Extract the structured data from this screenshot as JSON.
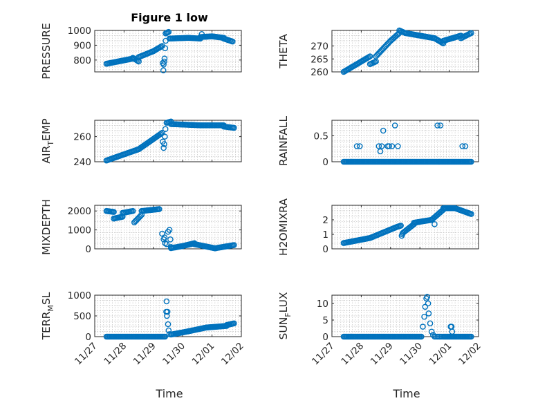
{
  "figure": {
    "title": "Figure 1 low",
    "xlabel": "Time"
  },
  "colors": {
    "series": "#0072BD",
    "axis": "#262626",
    "grid": "#c8c8c8"
  },
  "chart_data": [
    {
      "type": "scatter",
      "ylabel": "PRESSURE",
      "title": "Figure 1 low",
      "xlim": [
        0,
        5
      ],
      "ylim": [
        720,
        1000
      ],
      "yticks": [
        800,
        900,
        1000
      ],
      "xticks": [
        "11/27",
        "11/28",
        "11/29",
        "11/30",
        "12/01",
        "12/02"
      ],
      "grid": true,
      "segments": [
        {
          "x0": 0.4,
          "x1": 1.3,
          "y0": 775,
          "y1": 810
        },
        {
          "x0": 1.3,
          "x1": 1.5,
          "y0": 815,
          "y1": 790
        },
        {
          "x0": 1.5,
          "x1": 2.0,
          "y0": 820,
          "y1": 860
        },
        {
          "x0": 2.0,
          "x1": 2.3,
          "y0": 860,
          "y1": 895
        },
        {
          "x0": 2.42,
          "x1": 2.52,
          "y0": 980,
          "y1": 990
        },
        {
          "x0": 2.55,
          "x1": 3.2,
          "y0": 945,
          "y1": 950
        },
        {
          "x0": 3.2,
          "x1": 3.6,
          "y0": 950,
          "y1": 945
        },
        {
          "x0": 3.6,
          "x1": 4.0,
          "y0": 955,
          "y1": 960
        },
        {
          "x0": 4.0,
          "x1": 4.4,
          "y0": 960,
          "y1": 950
        },
        {
          "x0": 4.4,
          "x1": 4.7,
          "y0": 945,
          "y1": 925
        }
      ],
      "points": [
        [
          2.32,
          780
        ],
        [
          2.35,
          770
        ],
        [
          2.34,
          730
        ],
        [
          2.37,
          790
        ],
        [
          2.38,
          810
        ],
        [
          2.4,
          880
        ],
        [
          2.42,
          930
        ],
        [
          3.65,
          975
        ]
      ]
    },
    {
      "type": "scatter",
      "ylabel": "THETA",
      "xlim": [
        0,
        5
      ],
      "ylim": [
        260,
        276
      ],
      "yticks": [
        260,
        265,
        270
      ],
      "xticks": [
        "11/27",
        "11/28",
        "11/29",
        "11/30",
        "12/01",
        "12/02"
      ],
      "grid": true,
      "segments": [
        {
          "x0": 0.4,
          "x1": 1.3,
          "y0": 260,
          "y1": 266
        },
        {
          "x0": 1.3,
          "x1": 1.5,
          "y0": 263,
          "y1": 264
        },
        {
          "x0": 1.5,
          "x1": 2.0,
          "y0": 266,
          "y1": 272
        },
        {
          "x0": 2.0,
          "x1": 2.3,
          "y0": 272,
          "y1": 275
        },
        {
          "x0": 2.3,
          "x1": 2.5,
          "y0": 276,
          "y1": 275
        },
        {
          "x0": 2.5,
          "x1": 3.5,
          "y0": 275,
          "y1": 273
        },
        {
          "x0": 3.5,
          "x1": 3.8,
          "y0": 273,
          "y1": 271
        },
        {
          "x0": 3.8,
          "x1": 4.4,
          "y0": 272,
          "y1": 274
        },
        {
          "x0": 4.4,
          "x1": 4.75,
          "y0": 273,
          "y1": 275
        }
      ],
      "points": []
    },
    {
      "type": "scatter",
      "ylabel": "AIR_TEMP",
      "xlim": [
        0,
        5
      ],
      "ylim": [
        240,
        273
      ],
      "yticks": [
        240,
        260
      ],
      "xticks": [
        "11/27",
        "11/28",
        "11/29",
        "11/30",
        "12/01",
        "12/02"
      ],
      "grid": true,
      "segments": [
        {
          "x0": 0.4,
          "x1": 1.5,
          "y0": 241,
          "y1": 250
        },
        {
          "x0": 1.5,
          "x1": 2.3,
          "y0": 250,
          "y1": 263
        },
        {
          "x0": 2.45,
          "x1": 2.6,
          "y0": 271,
          "y1": 272
        },
        {
          "x0": 2.6,
          "x1": 3.6,
          "y0": 270,
          "y1": 269
        },
        {
          "x0": 3.6,
          "x1": 4.4,
          "y0": 269,
          "y1": 269
        },
        {
          "x0": 4.4,
          "x1": 4.75,
          "y0": 268,
          "y1": 267
        }
      ],
      "points": [
        [
          2.32,
          256
        ],
        [
          2.35,
          251
        ],
        [
          2.37,
          254
        ],
        [
          2.39,
          260
        ],
        [
          2.41,
          266
        ]
      ]
    },
    {
      "type": "scatter",
      "ylabel": "RAINFALL",
      "xlim": [
        0,
        5
      ],
      "ylim": [
        0,
        0.8
      ],
      "yticks": [
        0,
        0.5
      ],
      "xticks": [
        "11/27",
        "11/28",
        "11/29",
        "11/30",
        "12/01",
        "12/02"
      ],
      "grid": true,
      "segments": [
        {
          "x0": 0.4,
          "x1": 4.75,
          "y0": 0,
          "y1": 0
        }
      ],
      "points": [
        [
          0.85,
          0.3
        ],
        [
          0.95,
          0.3
        ],
        [
          1.6,
          0.3
        ],
        [
          1.65,
          0.2
        ],
        [
          1.7,
          0.3
        ],
        [
          1.75,
          0.6
        ],
        [
          1.9,
          0.3
        ],
        [
          1.95,
          0.3
        ],
        [
          2.05,
          0.3
        ],
        [
          2.15,
          0.7
        ],
        [
          2.25,
          0.3
        ],
        [
          3.6,
          0.7
        ],
        [
          3.7,
          0.7
        ],
        [
          4.45,
          0.3
        ],
        [
          4.55,
          0.3
        ]
      ]
    },
    {
      "type": "scatter",
      "ylabel": "MIXDEPTH",
      "xlim": [
        0,
        5
      ],
      "ylim": [
        0,
        2300
      ],
      "yticks": [
        0,
        1000,
        2000
      ],
      "xticks": [
        "11/27",
        "11/28",
        "11/29",
        "11/30",
        "12/01",
        "12/02"
      ],
      "grid": true,
      "segments": [
        {
          "x0": 0.4,
          "x1": 0.65,
          "y0": 2000,
          "y1": 1950
        },
        {
          "x0": 0.65,
          "x1": 0.95,
          "y0": 1600,
          "y1": 1700
        },
        {
          "x0": 0.95,
          "x1": 1.3,
          "y0": 1900,
          "y1": 2000
        },
        {
          "x0": 1.35,
          "x1": 1.6,
          "y0": 1400,
          "y1": 1800
        },
        {
          "x0": 1.6,
          "x1": 2.2,
          "y0": 2000,
          "y1": 2100
        },
        {
          "x0": 2.6,
          "x1": 3.0,
          "y0": 40,
          "y1": 150
        },
        {
          "x0": 3.0,
          "x1": 3.4,
          "y0": 150,
          "y1": 300
        },
        {
          "x0": 3.4,
          "x1": 4.1,
          "y0": 250,
          "y1": 30
        },
        {
          "x0": 4.1,
          "x1": 4.75,
          "y0": 30,
          "y1": 200
        }
      ],
      "points": [
        [
          2.3,
          800
        ],
        [
          2.35,
          500
        ],
        [
          2.38,
          600
        ],
        [
          2.4,
          300
        ],
        [
          2.45,
          250
        ],
        [
          2.5,
          900
        ],
        [
          2.55,
          1000
        ],
        [
          2.58,
          500
        ],
        [
          2.6,
          100
        ]
      ]
    },
    {
      "type": "scatter",
      "ylabel": "H2OMIXRA",
      "xlim": [
        0,
        5
      ],
      "ylim": [
        0,
        3
      ],
      "yticks": [
        0,
        1,
        2
      ],
      "xticks": [
        "11/27",
        "11/28",
        "11/29",
        "11/30",
        "12/01",
        "12/02"
      ],
      "grid": true,
      "segments": [
        {
          "x0": 0.4,
          "x1": 1.3,
          "y0": 0.4,
          "y1": 0.75
        },
        {
          "x0": 1.3,
          "x1": 2.2,
          "y0": 0.75,
          "y1": 1.5
        },
        {
          "x0": 2.2,
          "x1": 2.35,
          "y0": 1.5,
          "y1": 1.6
        },
        {
          "x0": 2.42,
          "x1": 2.8,
          "y0": 1.1,
          "y1": 1.7
        },
        {
          "x0": 2.8,
          "x1": 3.4,
          "y0": 1.8,
          "y1": 2.0
        },
        {
          "x0": 3.4,
          "x1": 3.8,
          "y0": 2.0,
          "y1": 2.7
        },
        {
          "x0": 3.8,
          "x1": 4.2,
          "y0": 2.8,
          "y1": 2.8
        },
        {
          "x0": 4.2,
          "x1": 4.75,
          "y0": 2.8,
          "y1": 2.4
        }
      ],
      "points": [
        [
          2.38,
          0.9
        ],
        [
          2.4,
          1.0
        ],
        [
          3.5,
          1.7
        ]
      ]
    },
    {
      "type": "scatter",
      "ylabel": "TERR_MSL",
      "xlim": [
        0,
        5
      ],
      "ylim": [
        0,
        1000
      ],
      "yticks": [
        0,
        500,
        1000
      ],
      "xticks": [
        "11/27",
        "11/28",
        "11/29",
        "11/30",
        "12/01",
        "12/02"
      ],
      "grid": true,
      "segments": [
        {
          "x0": 0.4,
          "x1": 2.4,
          "y0": 0,
          "y1": 0
        },
        {
          "x0": 2.6,
          "x1": 3.2,
          "y0": 50,
          "y1": 130
        },
        {
          "x0": 3.2,
          "x1": 3.8,
          "y0": 130,
          "y1": 220
        },
        {
          "x0": 3.8,
          "x1": 4.5,
          "y0": 220,
          "y1": 260
        },
        {
          "x0": 4.5,
          "x1": 4.75,
          "y0": 280,
          "y1": 320
        }
      ],
      "points": [
        [
          2.45,
          850
        ],
        [
          2.44,
          600
        ],
        [
          2.46,
          500
        ],
        [
          2.48,
          600
        ],
        [
          2.5,
          300
        ],
        [
          2.52,
          150
        ],
        [
          2.55,
          60
        ]
      ]
    },
    {
      "type": "scatter",
      "ylabel": "SUN_FLUX",
      "xlim": [
        0,
        5
      ],
      "ylim": [
        0,
        12.5
      ],
      "yticks": [
        0,
        5,
        10
      ],
      "xticks": [
        "11/27",
        "11/28",
        "11/29",
        "11/30",
        "12/01",
        "12/02"
      ],
      "grid": true,
      "segments": [
        {
          "x0": 0.4,
          "x1": 3.05,
          "y0": 0,
          "y1": 0
        },
        {
          "x0": 3.8,
          "x1": 4.75,
          "y0": 0,
          "y1": 0
        }
      ],
      "points": [
        [
          3.1,
          3
        ],
        [
          3.15,
          6
        ],
        [
          3.18,
          9
        ],
        [
          3.22,
          11.5
        ],
        [
          3.25,
          12
        ],
        [
          3.28,
          10
        ],
        [
          3.3,
          7
        ],
        [
          3.35,
          4
        ],
        [
          3.4,
          1.5
        ],
        [
          3.45,
          0.5
        ],
        [
          3.5,
          0
        ],
        [
          3.55,
          0
        ],
        [
          3.6,
          0
        ],
        [
          3.65,
          0
        ],
        [
          3.7,
          0
        ],
        [
          3.75,
          0
        ],
        [
          4.05,
          3
        ],
        [
          4.08,
          3
        ],
        [
          4.1,
          1.5
        ]
      ]
    }
  ]
}
